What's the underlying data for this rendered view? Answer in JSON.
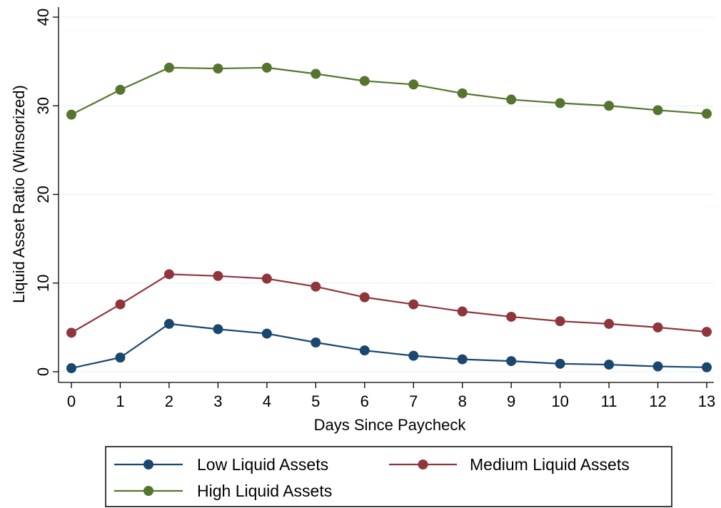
{
  "chart_data": {
    "type": "line",
    "title": "",
    "xlabel": "Days Since Paycheck",
    "ylabel": "Liquid Asset Ratio (Winsorized)",
    "xlim": [
      0,
      13
    ],
    "ylim": [
      0,
      40
    ],
    "x": [
      0,
      1,
      2,
      3,
      4,
      5,
      6,
      7,
      8,
      9,
      10,
      11,
      12,
      13
    ],
    "x_ticks": [
      "0",
      "1",
      "2",
      "3",
      "4",
      "5",
      "6",
      "7",
      "8",
      "9",
      "10",
      "11",
      "12",
      "13"
    ],
    "y_ticks": [
      "0",
      "10",
      "20",
      "30",
      "40"
    ],
    "y_tick_values": [
      0,
      10,
      20,
      30,
      40
    ],
    "grid": true,
    "legend_position": "bottom",
    "series": [
      {
        "name": "Low Liquid Assets",
        "color": "#1a476f",
        "marker": "circle",
        "values": [
          0.4,
          1.6,
          5.4,
          4.8,
          4.3,
          3.3,
          2.4,
          1.8,
          1.4,
          1.2,
          0.9,
          0.8,
          0.6,
          0.5
        ]
      },
      {
        "name": "Medium Liquid Assets",
        "color": "#90353b",
        "marker": "circle",
        "values": [
          4.4,
          7.6,
          11.0,
          10.8,
          10.5,
          9.6,
          8.4,
          7.6,
          6.8,
          6.2,
          5.7,
          5.4,
          5.0,
          4.5
        ]
      },
      {
        "name": "High Liquid Assets",
        "color": "#55752f",
        "marker": "circle",
        "values": [
          29.0,
          31.8,
          34.3,
          34.2,
          34.3,
          33.6,
          32.8,
          32.4,
          31.4,
          30.7,
          30.3,
          30.0,
          29.5,
          29.1
        ]
      }
    ]
  }
}
